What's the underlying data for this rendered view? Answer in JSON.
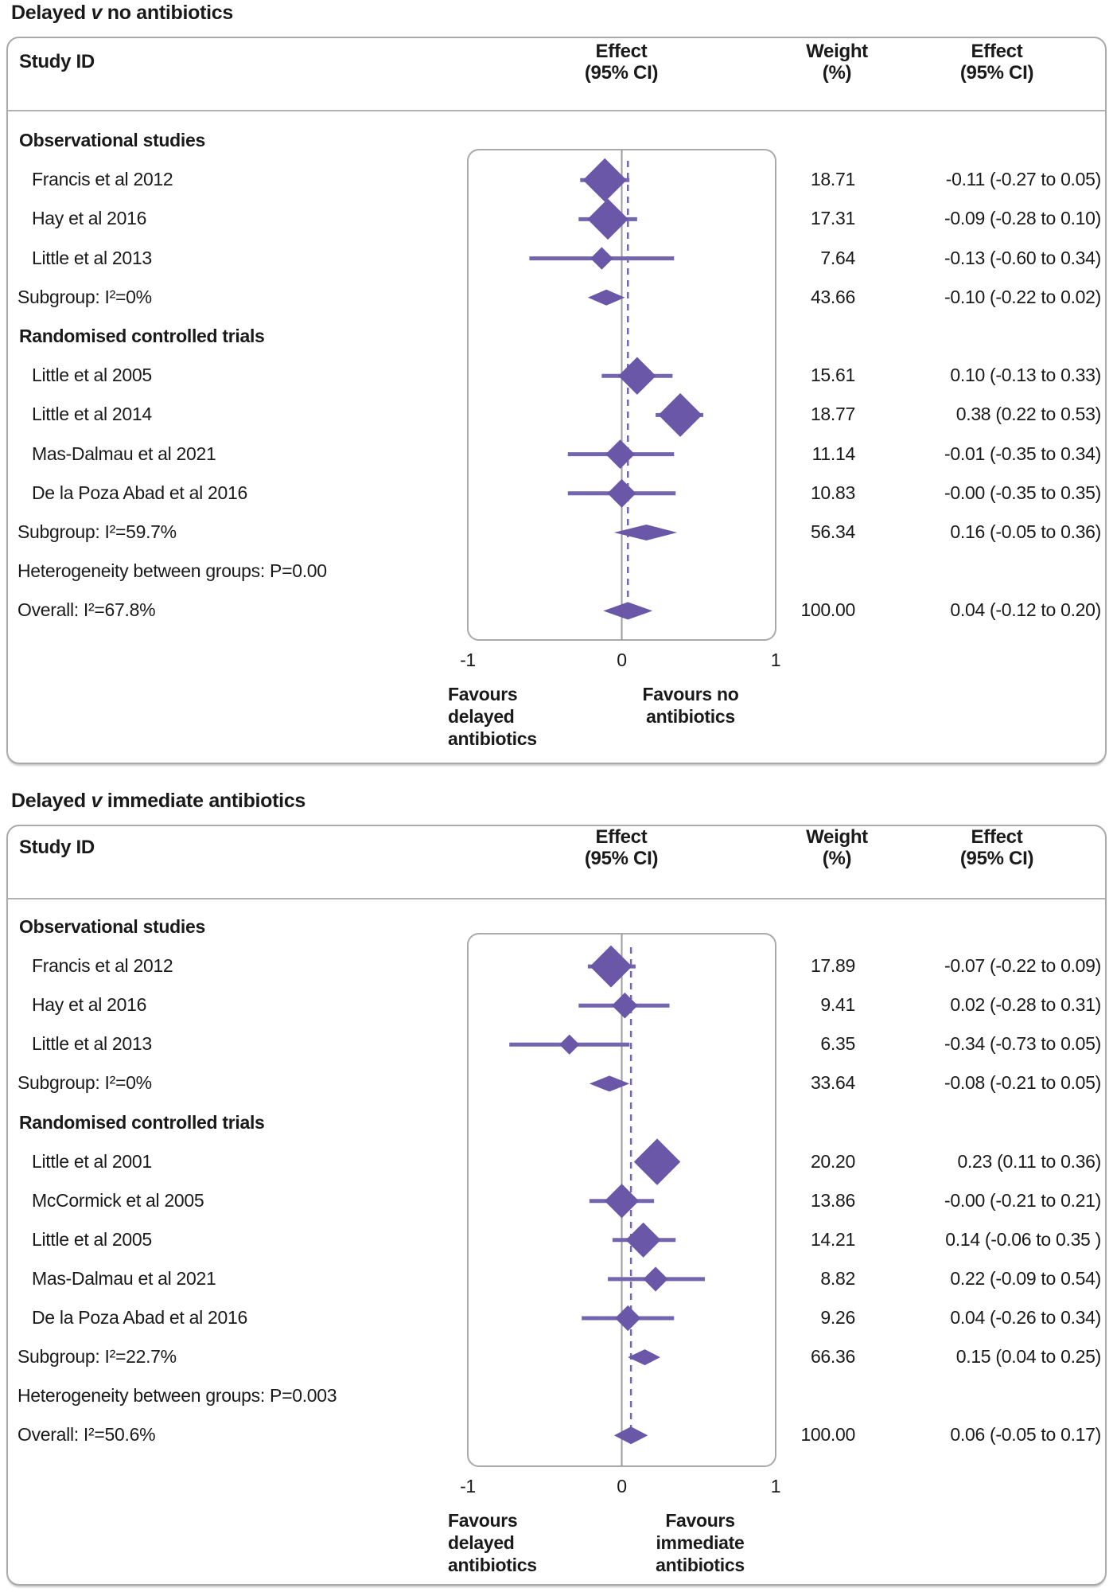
{
  "colors": {
    "diamond": "#6a57a8",
    "ci_line": "#7365ae",
    "ref_line": "#7568b2",
    "zero_line": "#9c9c9c",
    "plot_border": "#aaaaaa",
    "panel_border": "#a9a9a9",
    "header_rule": "#b3b3b3",
    "text": "#1a1a1a"
  },
  "chart_data": [
    {
      "type": "forest",
      "title_pre": "Delayed",
      "title_v": "v",
      "title_post": "no antibiotics",
      "columns": {
        "study": "Study ID",
        "effect_plot": "Effect\n(95% CI)",
        "weight": "Weight\n(%)",
        "effect_text": "Effect\n(95% CI)"
      },
      "axis": {
        "min": -1,
        "max": 1,
        "ticks": [
          "-1",
          "0",
          "1"
        ],
        "tick_values": [
          -1,
          0,
          1
        ]
      },
      "zero_line": 0,
      "overall_ref_line": 0.04,
      "favours_left": [
        "Favours",
        "delayed",
        "antibiotics"
      ],
      "favours_right": [
        "Favours no",
        "antibiotics"
      ],
      "rows": [
        {
          "kind": "group",
          "label": "Observational studies"
        },
        {
          "kind": "study",
          "label": "Francis et al 2012",
          "estimate": -0.11,
          "ci_low": -0.27,
          "ci_high": 0.05,
          "weight": 18.71,
          "weight_text": "18.71",
          "effect_text": "-0.11 (-0.27 to 0.05)"
        },
        {
          "kind": "study",
          "label": "Hay et al 2016",
          "estimate": -0.09,
          "ci_low": -0.28,
          "ci_high": 0.1,
          "weight": 17.31,
          "weight_text": "17.31",
          "effect_text": "-0.09 (-0.28 to 0.10)"
        },
        {
          "kind": "study",
          "label": "Little et al 2013",
          "estimate": -0.13,
          "ci_low": -0.6,
          "ci_high": 0.34,
          "weight": 7.64,
          "weight_text": "7.64",
          "effect_text": "-0.13 (-0.60 to 0.34)"
        },
        {
          "kind": "subgroup",
          "label": "Subgroup: I²=0%",
          "estimate": -0.1,
          "ci_low": -0.22,
          "ci_high": 0.02,
          "weight": 43.66,
          "weight_text": "43.66",
          "effect_text": "-0.10 (-0.22 to 0.02)"
        },
        {
          "kind": "group",
          "label": "Randomised controlled trials"
        },
        {
          "kind": "study",
          "label": "Little et al 2005",
          "estimate": 0.1,
          "ci_low": -0.13,
          "ci_high": 0.33,
          "weight": 15.61,
          "weight_text": "15.61",
          "effect_text": "0.10 (-0.13 to 0.33)"
        },
        {
          "kind": "study",
          "label": "Little et al 2014",
          "estimate": 0.38,
          "ci_low": 0.22,
          "ci_high": 0.53,
          "weight": 18.77,
          "weight_text": "18.77",
          "effect_text": "0.38 (0.22 to 0.53)"
        },
        {
          "kind": "study",
          "label": "Mas-Dalmau et al 2021",
          "estimate": -0.01,
          "ci_low": -0.35,
          "ci_high": 0.34,
          "weight": 11.14,
          "weight_text": "11.14",
          "effect_text": "-0.01 (-0.35 to 0.34)"
        },
        {
          "kind": "study",
          "label": "De la Poza Abad et al 2016",
          "estimate": 0,
          "ci_low": -0.35,
          "ci_high": 0.35,
          "weight": 10.83,
          "weight_text": "10.83",
          "effect_text": "-0.00 (-0.35 to 0.35)"
        },
        {
          "kind": "subgroup",
          "label": "Subgroup: I²=59.7%",
          "estimate": 0.16,
          "ci_low": -0.05,
          "ci_high": 0.36,
          "weight": 56.34,
          "weight_text": "56.34",
          "effect_text": "0.16 (-0.05 to 0.36)"
        },
        {
          "kind": "note",
          "label": "Heterogeneity between groups: P=0.00"
        },
        {
          "kind": "overall",
          "label": "Overall: I²=67.8%",
          "estimate": 0.04,
          "ci_low": -0.12,
          "ci_high": 0.2,
          "weight": 100.0,
          "weight_text": "100.00",
          "effect_text": "0.04 (-0.12 to 0.20)"
        }
      ]
    },
    {
      "type": "forest",
      "title_pre": "Delayed",
      "title_v": "v",
      "title_post": "immediate antibiotics",
      "columns": {
        "study": "Study ID",
        "effect_plot": "Effect\n(95% CI)",
        "weight": "Weight\n(%)",
        "effect_text": "Effect\n(95% CI)"
      },
      "axis": {
        "min": -1,
        "max": 1,
        "ticks": [
          "-1",
          "0",
          "1"
        ],
        "tick_values": [
          -1,
          0,
          1
        ]
      },
      "zero_line": 0,
      "overall_ref_line": 0.06,
      "favours_left": [
        "Favours",
        "delayed",
        "antibiotics"
      ],
      "favours_right": [
        "Favours",
        "immediate",
        "antibiotics"
      ],
      "rows": [
        {
          "kind": "group",
          "label": "Observational studies"
        },
        {
          "kind": "study",
          "label": "Francis et al 2012",
          "estimate": -0.07,
          "ci_low": -0.22,
          "ci_high": 0.09,
          "weight": 17.89,
          "weight_text": "17.89",
          "effect_text": "-0.07 (-0.22 to 0.09)"
        },
        {
          "kind": "study",
          "label": "Hay et al 2016",
          "estimate": 0.02,
          "ci_low": -0.28,
          "ci_high": 0.31,
          "weight": 9.41,
          "weight_text": "9.41",
          "effect_text": "0.02 (-0.28 to 0.31)"
        },
        {
          "kind": "study",
          "label": "Little et al 2013",
          "estimate": -0.34,
          "ci_low": -0.73,
          "ci_high": 0.05,
          "weight": 6.35,
          "weight_text": "6.35",
          "effect_text": "-0.34 (-0.73 to 0.05)"
        },
        {
          "kind": "subgroup",
          "label": "Subgroup: I²=0%",
          "estimate": -0.08,
          "ci_low": -0.21,
          "ci_high": 0.05,
          "weight": 33.64,
          "weight_text": "33.64",
          "effect_text": "-0.08 (-0.21 to 0.05)"
        },
        {
          "kind": "group",
          "label": "Randomised controlled trials"
        },
        {
          "kind": "study",
          "label": "Little et al 2001",
          "estimate": 0.23,
          "ci_low": 0.11,
          "ci_high": 0.36,
          "weight": 20.2,
          "weight_text": "20.20",
          "effect_text": "0.23 (0.11 to 0.36)"
        },
        {
          "kind": "study",
          "label": "McCormick et al 2005",
          "estimate": 0,
          "ci_low": -0.21,
          "ci_high": 0.21,
          "weight": 13.86,
          "weight_text": "13.86",
          "effect_text": "-0.00 (-0.21 to 0.21)"
        },
        {
          "kind": "study",
          "label": "Little et al 2005",
          "estimate": 0.14,
          "ci_low": -0.06,
          "ci_high": 0.35,
          "weight": 14.21,
          "weight_text": "14.21",
          "effect_text": "0.14 (-0.06 to 0.35 )"
        },
        {
          "kind": "study",
          "label": "Mas-Dalmau et al 2021",
          "estimate": 0.22,
          "ci_low": -0.09,
          "ci_high": 0.54,
          "weight": 8.82,
          "weight_text": "8.82",
          "effect_text": "0.22 (-0.09 to 0.54)"
        },
        {
          "kind": "study",
          "label": "De la Poza Abad et al 2016",
          "estimate": 0.04,
          "ci_low": -0.26,
          "ci_high": 0.34,
          "weight": 9.26,
          "weight_text": "9.26",
          "effect_text": "0.04 (-0.26 to 0.34)"
        },
        {
          "kind": "subgroup",
          "label": "Subgroup: I²=22.7%",
          "estimate": 0.15,
          "ci_low": 0.04,
          "ci_high": 0.25,
          "weight": 66.36,
          "weight_text": "66.36",
          "effect_text": "0.15 (0.04 to 0.25)"
        },
        {
          "kind": "note",
          "label": "Heterogeneity between groups: P=0.003"
        },
        {
          "kind": "overall",
          "label": "Overall: I²=50.6%",
          "estimate": 0.06,
          "ci_low": -0.05,
          "ci_high": 0.17,
          "weight": 100.0,
          "weight_text": "100.00",
          "effect_text": "0.06 (-0.05 to 0.17)"
        }
      ]
    }
  ]
}
